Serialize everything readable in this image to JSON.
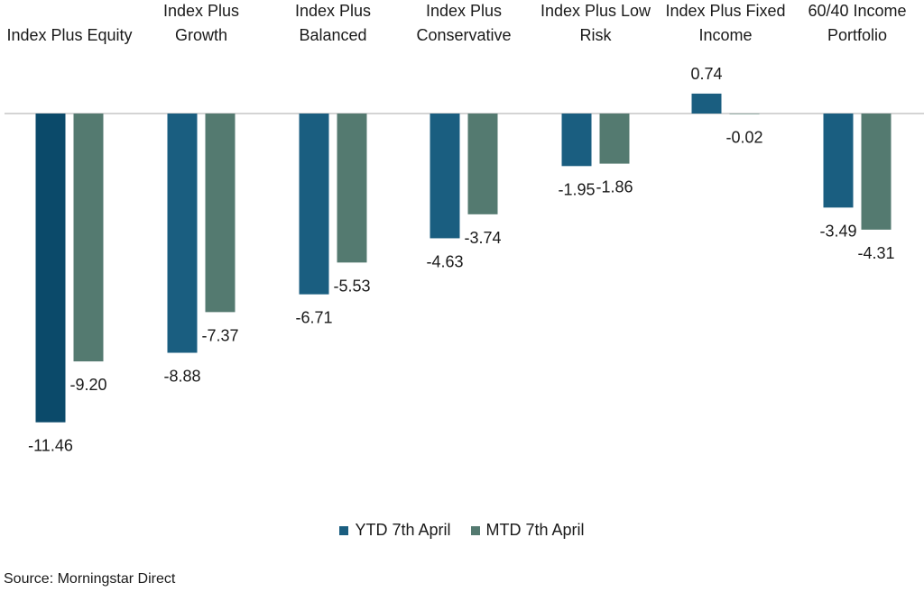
{
  "chart_data": {
    "type": "bar",
    "categories": [
      [
        "Index Plus Equity"
      ],
      [
        "Index Plus",
        "Growth"
      ],
      [
        "Index Plus",
        "Balanced"
      ],
      [
        "Index Plus",
        "Conservative"
      ],
      [
        "Index Plus Low",
        "Risk"
      ],
      [
        "Index Plus Fixed",
        "Income"
      ],
      [
        "60/40 Income",
        "Portfolio"
      ]
    ],
    "series": [
      {
        "name": "YTD 7th April",
        "values": [
          -11.46,
          -8.88,
          -6.71,
          -4.63,
          -1.95,
          0.74,
          -3.49
        ],
        "labels": [
          "-11.46",
          "-8.88",
          "-6.71",
          "-4.63",
          "-1.95",
          "0.74",
          "-3.49"
        ],
        "color": "#1a5e80"
      },
      {
        "name": "MTD 7th April",
        "values": [
          -9.2,
          -7.37,
          -5.53,
          -3.74,
          -1.86,
          -0.02,
          -4.31
        ],
        "labels": [
          "-9.20",
          "-7.37",
          "-5.53",
          "-3.74",
          "-1.86",
          "-0.02",
          "-4.31"
        ],
        "color": "#547a70"
      }
    ],
    "first_bar_color": "#0b4a6a",
    "ylim": [
      -11.46,
      0.74
    ],
    "grid": false,
    "legend_position": "bottom",
    "source": "Source: Morningstar Direct"
  }
}
